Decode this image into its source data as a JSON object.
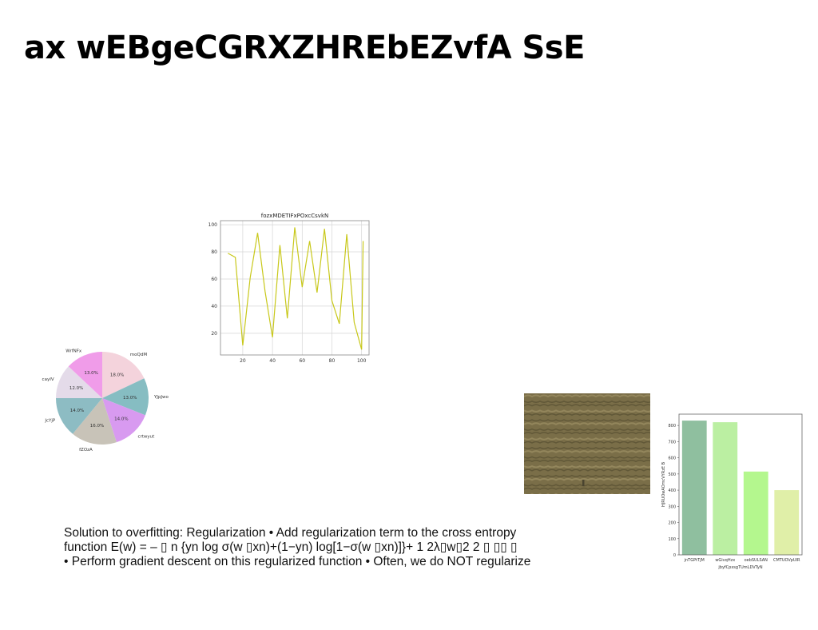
{
  "slide": {
    "title": "ax wEBgeCGRXZHREbEZvfA SsE",
    "body_lines": [
      "Solution to overfitting: Regularization • Add regularization term to the cross entropy",
      "function E(w) = – ▯ n {yn log σ(w ▯xn)+(1−yn) log[1−σ(w ▯xn)]}+ 1 2λ▯w▯2 2 ▯ ▯▯ ▯",
      "• Perform gradient descent on this regularized function • Often, we do NOT regularize"
    ]
  },
  "chart_data": [
    {
      "type": "pie",
      "labels": [
        "moQdM",
        "YJpJwo",
        "crtwyut",
        "fZOzA",
        "JcYjP",
        "cayIV",
        "WrfNFx"
      ],
      "values": [
        18.0,
        13.0,
        14.0,
        16.0,
        14.0,
        12.0,
        13.0
      ],
      "value_labels": [
        "18.0%",
        "13.0%",
        "14.0%",
        "16.0%",
        "14.0%",
        "12.0%",
        "13.0%"
      ],
      "colors": [
        "#f4d3dc",
        "#86bdc2",
        "#d89af0",
        "#c8c3b8",
        "#8dbcc3",
        "#e4dbe9",
        "#f09ce9"
      ]
    },
    {
      "type": "line",
      "title": "fozxMDETIFxPOxcCsvkN",
      "x": [
        10,
        15,
        20,
        25,
        30,
        35,
        40,
        45,
        50,
        55,
        60,
        65,
        70,
        75,
        80,
        85,
        90,
        95,
        100
      ],
      "y": [
        79,
        76,
        11,
        61,
        94,
        51,
        17,
        85,
        31,
        98,
        54,
        88,
        50,
        97,
        44,
        27,
        93,
        28,
        8
      ],
      "y_tail": [
        88
      ],
      "x_tail": [
        101
      ],
      "xticks": [
        20,
        40,
        60,
        80,
        100
      ],
      "yticks": [
        20,
        40,
        60,
        80,
        100
      ],
      "xlim": [
        5,
        105
      ],
      "ylim": [
        4,
        103
      ],
      "color": "#c8c81a",
      "grid": true
    },
    {
      "type": "bar",
      "categories": [
        "jnTGPtTjM",
        "wGivqHzx",
        "oebSULSAN",
        "CMTUOVpUIR"
      ],
      "values": [
        830,
        820,
        515,
        400
      ],
      "colors": [
        "#8fbf9f",
        "#bbefa2",
        "#b4f78e",
        "#e0efa8"
      ],
      "xlabel": "jbyfCpxsgTUmLDVTyN",
      "ylabel": "HJRUOwAOmcVYRzE B",
      "yticks": [
        0,
        100,
        200,
        300,
        400,
        500,
        600,
        700,
        800
      ],
      "ylim": [
        0,
        870
      ]
    }
  ],
  "photo": {
    "colors": [
      "#5b5234",
      "#7a6e48",
      "#9a8c62",
      "#4a4430"
    ]
  }
}
